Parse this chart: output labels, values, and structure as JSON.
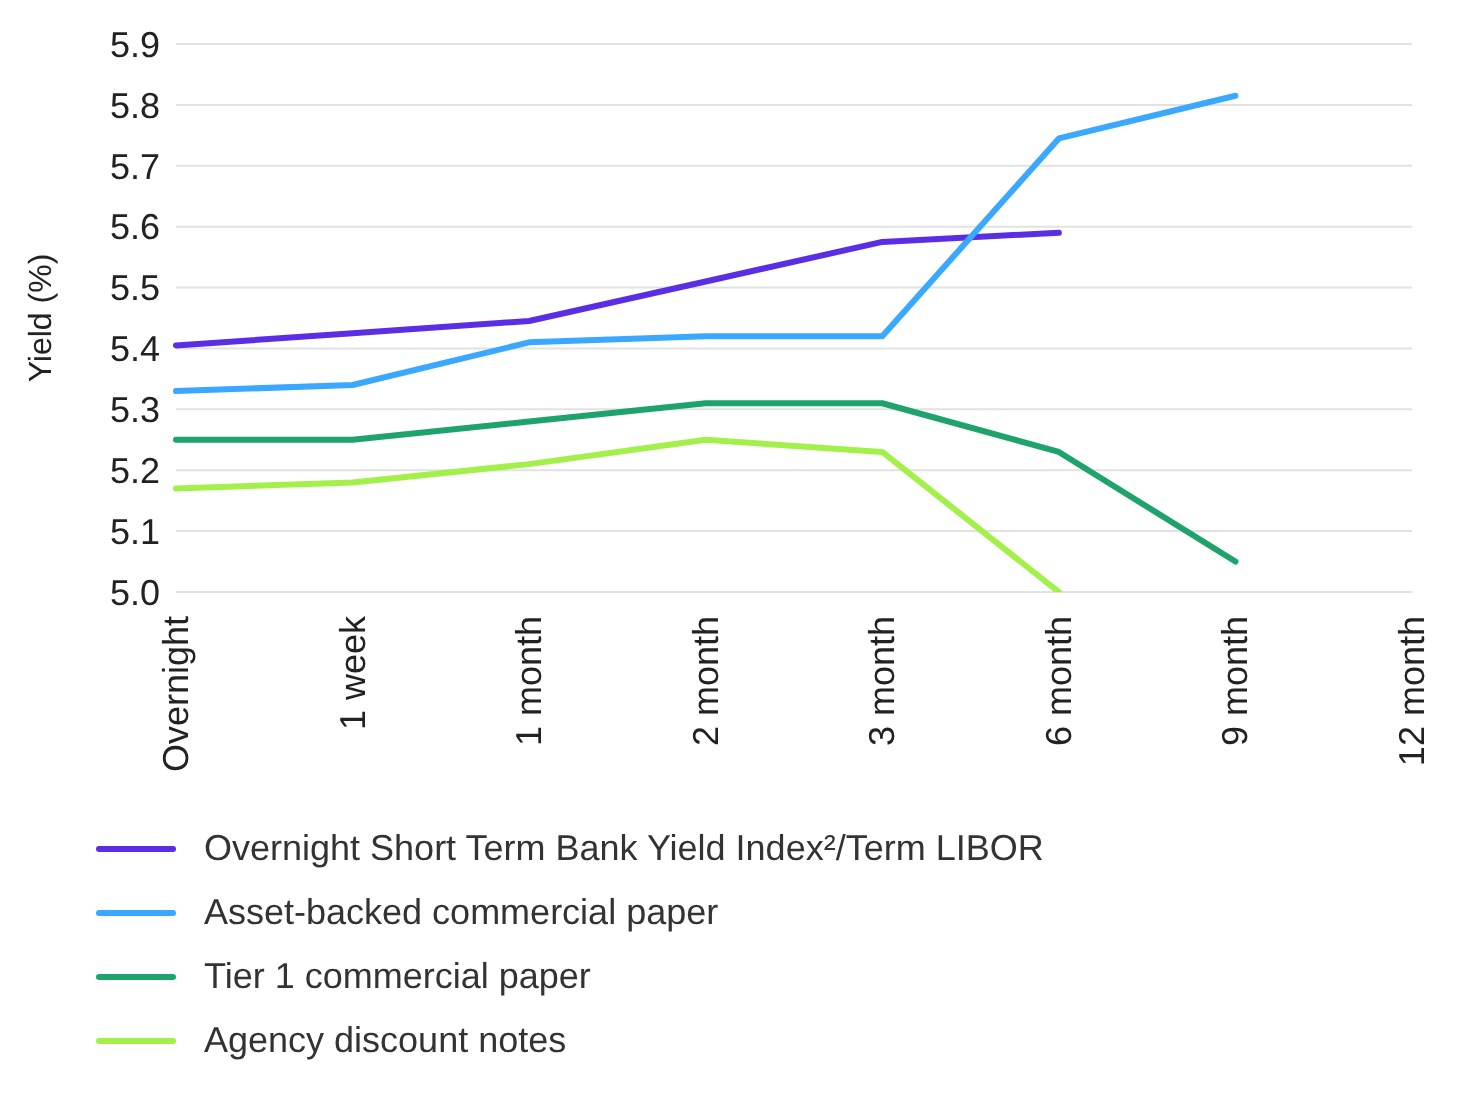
{
  "chart_data": {
    "type": "line",
    "ylabel": "Yield (%)",
    "categories": [
      "Overnight",
      "1 week",
      "1 month",
      "2 month",
      "3 month",
      "6 month",
      "9 month",
      "12 month"
    ],
    "series": [
      {
        "name": "Overnight Short Term Bank Yield Index²/Term LIBOR",
        "color": "#5b2ee6",
        "values": [
          5.405,
          5.425,
          5.445,
          5.51,
          5.575,
          5.59,
          null,
          null
        ]
      },
      {
        "name": "Asset-backed commercial paper",
        "color": "#3aa8ff",
        "values": [
          5.33,
          5.34,
          5.41,
          5.42,
          5.42,
          5.745,
          5.815,
          null
        ]
      },
      {
        "name": "Tier 1 commercial paper",
        "color": "#1fa36c",
        "values": [
          5.25,
          5.25,
          5.28,
          5.31,
          5.31,
          5.23,
          5.05,
          null
        ]
      },
      {
        "name": "Agency discount notes",
        "color": "#a4f04a",
        "values": [
          5.17,
          5.18,
          5.21,
          5.25,
          5.23,
          5.0,
          null,
          null
        ]
      }
    ],
    "ylim": [
      5.0,
      5.9
    ],
    "yticks": [
      {
        "value": 5.0,
        "label": "5.0"
      },
      5.1,
      5.2,
      5.3,
      5.4,
      5.5,
      5.6,
      5.7,
      5.8,
      5.9
    ],
    "grid": "y",
    "legend": "bottom",
    "marker": "none",
    "line_style": "solid"
  }
}
